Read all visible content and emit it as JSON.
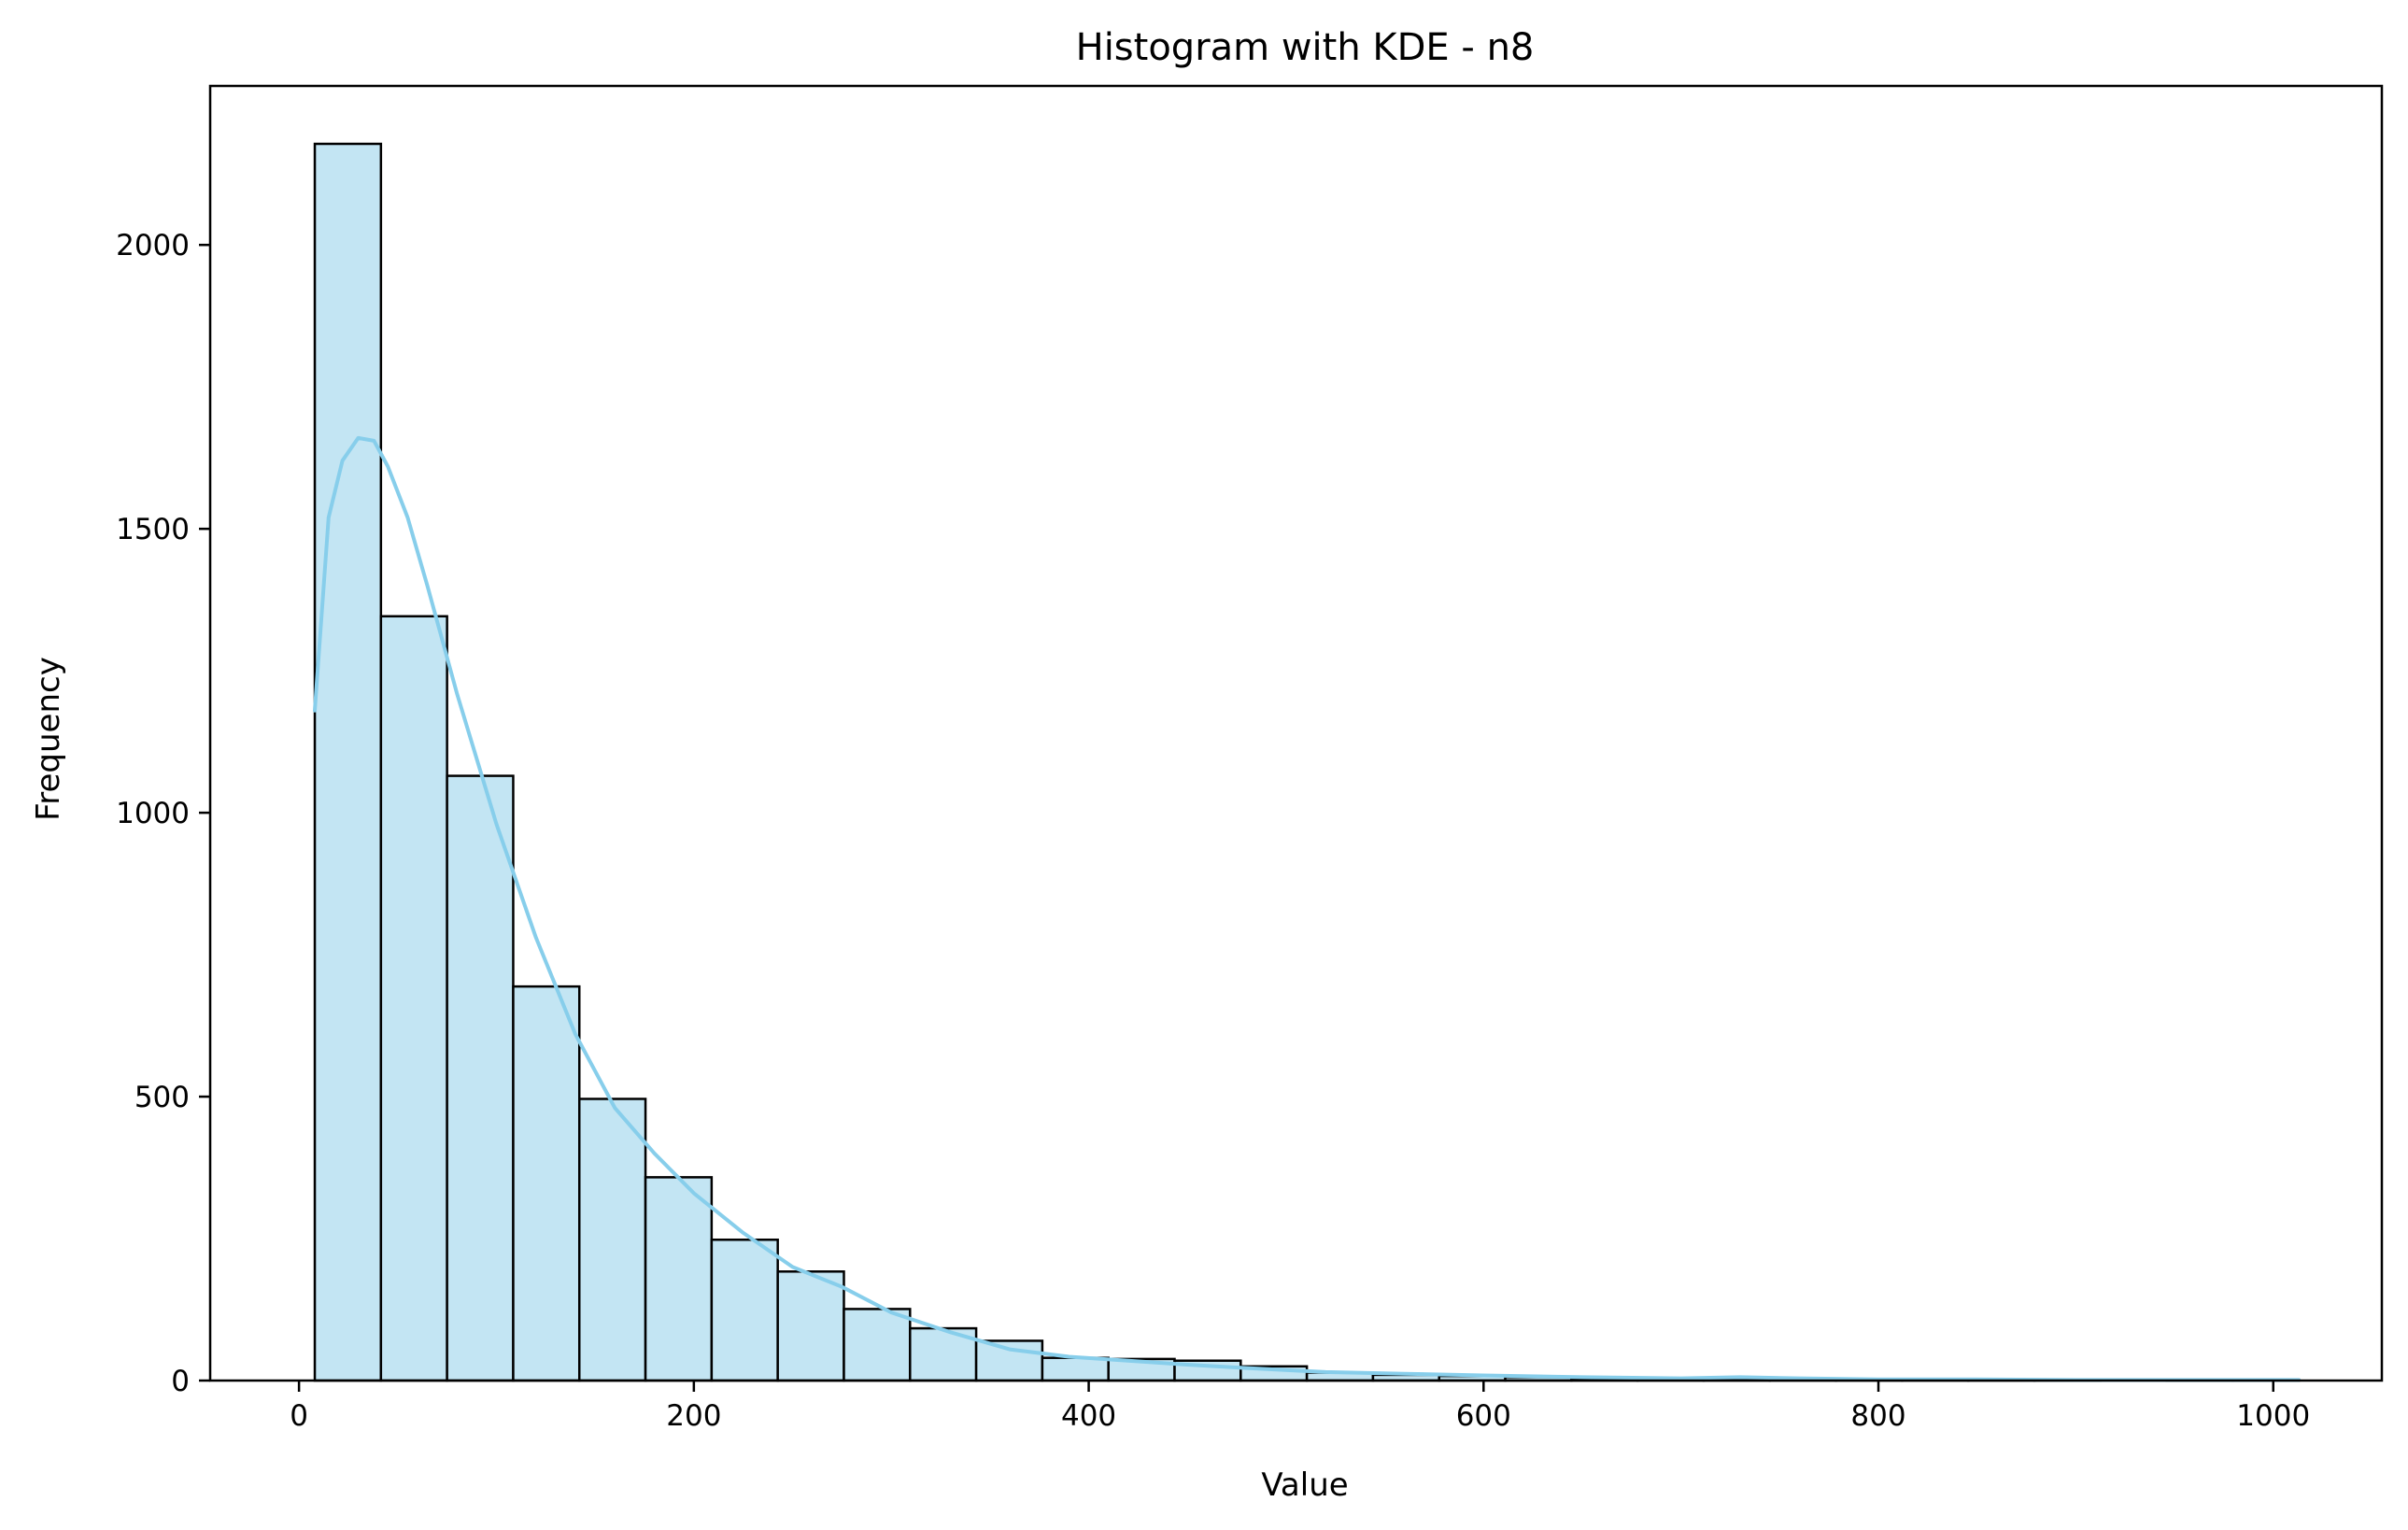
{
  "chart_data": {
    "type": "bar",
    "title": "Histogram with KDE - n8",
    "xlabel": "Value",
    "ylabel": "Frequency",
    "xlim": [
      -45,
      1055
    ],
    "ylim": [
      0,
      2280
    ],
    "xticks": [
      0,
      200,
      400,
      600,
      800,
      1000
    ],
    "yticks": [
      0,
      500,
      1000,
      1500,
      2000
    ],
    "grid": false,
    "bar_fill": "#c3e5f3",
    "bar_edge": "#000000",
    "kde_color": "#87ceeb",
    "bins": [
      {
        "x0": 8,
        "x1": 41.5,
        "value": 2178
      },
      {
        "x0": 41.5,
        "x1": 75,
        "value": 1346
      },
      {
        "x0": 75,
        "x1": 108.5,
        "value": 1065
      },
      {
        "x0": 108.5,
        "x1": 142,
        "value": 694
      },
      {
        "x0": 142,
        "x1": 175.5,
        "value": 496
      },
      {
        "x0": 175.5,
        "x1": 209,
        "value": 358
      },
      {
        "x0": 209,
        "x1": 242.5,
        "value": 248
      },
      {
        "x0": 242.5,
        "x1": 276,
        "value": 192
      },
      {
        "x0": 276,
        "x1": 309.5,
        "value": 126
      },
      {
        "x0": 309.5,
        "x1": 343,
        "value": 92
      },
      {
        "x0": 343,
        "x1": 376.5,
        "value": 70
      },
      {
        "x0": 376.5,
        "x1": 410,
        "value": 40
      },
      {
        "x0": 410,
        "x1": 443.5,
        "value": 38
      },
      {
        "x0": 443.5,
        "x1": 477,
        "value": 35
      },
      {
        "x0": 477,
        "x1": 510.5,
        "value": 25
      },
      {
        "x0": 510.5,
        "x1": 544,
        "value": 14
      },
      {
        "x0": 544,
        "x1": 577.5,
        "value": 10
      },
      {
        "x0": 577.5,
        "x1": 611,
        "value": 8
      },
      {
        "x0": 611,
        "x1": 644.5,
        "value": 6
      },
      {
        "x0": 644.5,
        "x1": 678,
        "value": 4
      },
      {
        "x0": 678,
        "x1": 711.5,
        "value": 3
      },
      {
        "x0": 711.5,
        "x1": 745,
        "value": 3
      },
      {
        "x0": 745,
        "x1": 778.5,
        "value": 2
      },
      {
        "x0": 778.5,
        "x1": 812,
        "value": 1
      },
      {
        "x0": 812,
        "x1": 845.5,
        "value": 1
      },
      {
        "x0": 845.5,
        "x1": 879,
        "value": 1
      },
      {
        "x0": 879,
        "x1": 912.5,
        "value": 1
      },
      {
        "x0": 912.5,
        "x1": 946,
        "value": 0
      },
      {
        "x0": 946,
        "x1": 979.5,
        "value": 1
      },
      {
        "x0": 979.5,
        "x1": 1013,
        "value": 1
      }
    ],
    "kde": {
      "x": [
        8,
        15,
        22,
        30,
        38,
        45,
        55,
        65,
        80,
        100,
        120,
        140,
        160,
        180,
        200,
        225,
        250,
        275,
        300,
        330,
        360,
        390,
        420,
        450,
        480,
        520,
        560,
        600,
        650,
        700,
        730,
        760,
        800,
        850,
        900,
        950,
        1013
      ],
      "y": [
        1180,
        1520,
        1620,
        1660,
        1655,
        1610,
        1520,
        1400,
        1210,
        980,
        780,
        610,
        480,
        400,
        330,
        260,
        200,
        165,
        120,
        85,
        55,
        42,
        35,
        28,
        22,
        15,
        12,
        9,
        6,
        4,
        6,
        4,
        2,
        2,
        1,
        1,
        1
      ]
    }
  }
}
